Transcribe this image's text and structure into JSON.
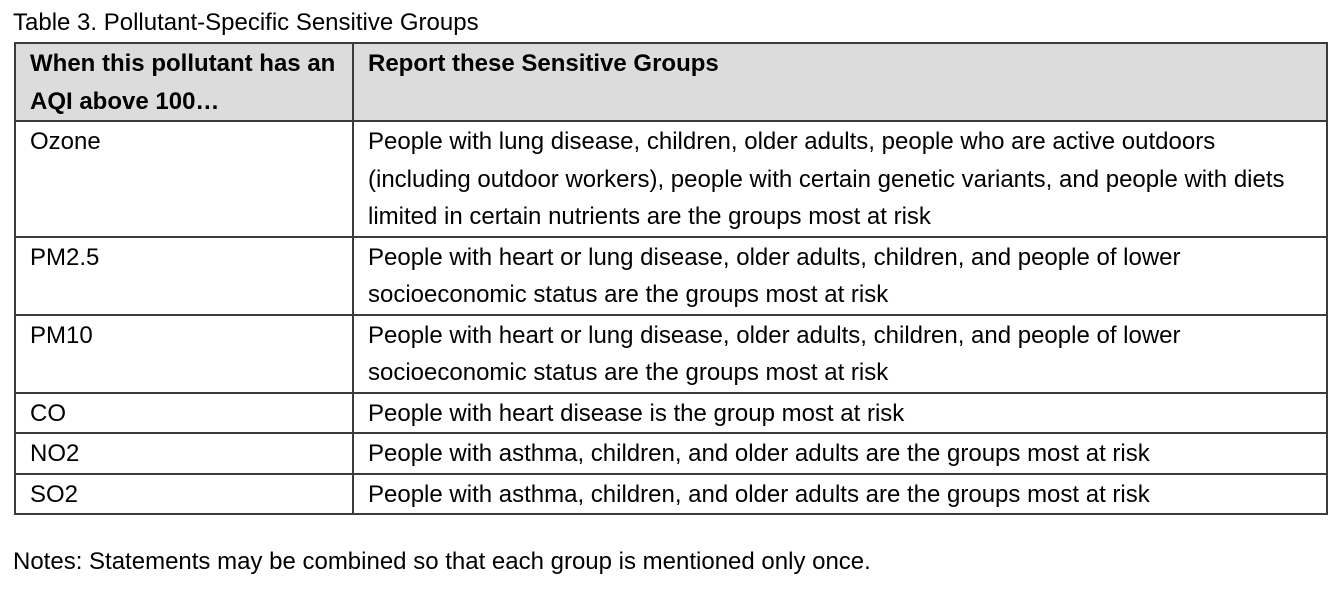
{
  "caption": "Table 3. Pollutant-Specific Sensitive Groups",
  "table": {
    "headers": [
      "When this pollutant has an AQI above 100…",
      "Report these Sensitive Groups"
    ],
    "rows": [
      {
        "pollutant": "Ozone",
        "groups": "People with lung disease, children, older adults, people who are active outdoors (including outdoor workers), people with certain genetic variants, and people with diets limited in certain nutrients are the groups most at risk"
      },
      {
        "pollutant": "PM2.5",
        "groups": "People with heart or lung disease, older adults, children, and people of lower socioeconomic status are the groups most at risk"
      },
      {
        "pollutant": "PM10",
        "groups": "People with heart or lung disease, older adults, children, and people of lower socioeconomic status are the groups most at risk"
      },
      {
        "pollutant": "CO",
        "groups": "People with heart disease is the group most at risk"
      },
      {
        "pollutant": "NO2",
        "groups": "People with asthma, children, and older adults are the groups most at risk"
      },
      {
        "pollutant": "SO2",
        "groups": "People with asthma, children, and older adults are the groups most at risk"
      }
    ]
  },
  "notes": "Notes: Statements may be combined so that each group is mentioned only once."
}
